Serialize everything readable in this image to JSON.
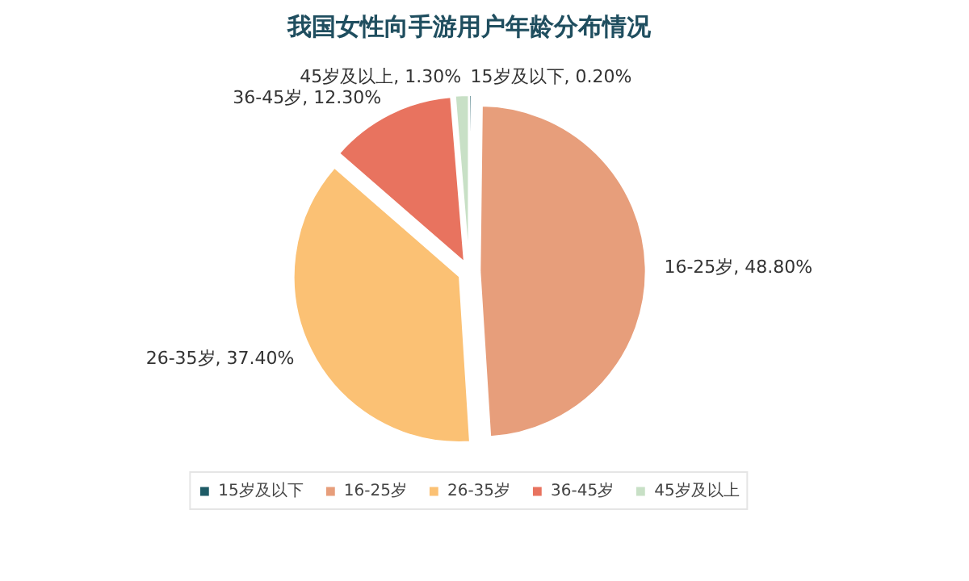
{
  "chart_data": {
    "type": "pie",
    "title": "我国女性向手游用户年龄分布情况",
    "categories": [
      "15岁及以下",
      "16-25岁",
      "26-35岁",
      "36-45岁",
      "45岁及以上"
    ],
    "values": [
      0.2,
      48.8,
      37.4,
      12.3,
      1.3
    ],
    "value_labels": [
      "15岁及以下, 0.20%",
      "16-25岁, 48.80%",
      "26-35岁, 37.40%",
      "36-45岁, 12.30%",
      "45岁及以上, 1.30%"
    ],
    "colors": [
      "#1e5b66",
      "#e79e7b",
      "#fbc174",
      "#e8735f",
      "#c8e0c6"
    ],
    "legend": "bottom"
  }
}
